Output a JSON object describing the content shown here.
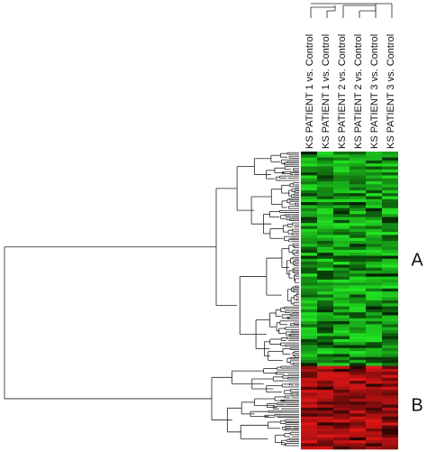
{
  "figure": {
    "columns": [
      "KS PATIENT 1 vs. Control",
      "KS PATIENT 1 vs. Control",
      "KS PATIENT 2 vs. Control",
      "KS PATIENT 2 vs. Control",
      "KS PATIENT 3 vs. Control",
      "KS PATIENT 3 vs. Control"
    ],
    "clusters": [
      {
        "label": "A"
      },
      {
        "label": "B"
      }
    ]
  }
}
